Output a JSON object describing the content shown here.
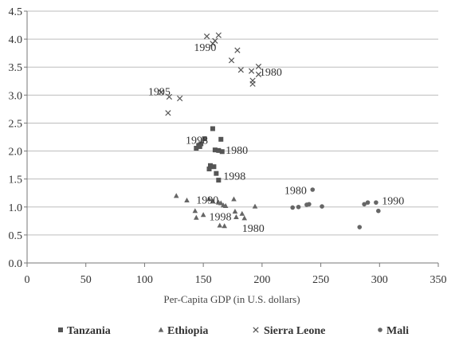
{
  "chart_data": {
    "type": "scatter",
    "title": "",
    "xlabel": "Per-Capita GDP (in U.S. dollars)",
    "ylabel": "",
    "xlim": [
      0,
      350
    ],
    "ylim": [
      0.0,
      4.5
    ],
    "xticks": [
      "0",
      "50",
      "100",
      "150",
      "200",
      "250",
      "300",
      "350"
    ],
    "yticks": [
      "0.0",
      "0.5",
      "1.0",
      "1.5",
      "2.0",
      "2.5",
      "3.0",
      "3.5",
      "4.0",
      "4.5"
    ],
    "grid": "horizontal",
    "legend_position": "bottom",
    "series": [
      {
        "name": "Tanzania",
        "marker": "square",
        "color": "#555555",
        "points": [
          [
            158,
            2.4
          ],
          [
            165,
            2.21
          ],
          [
            151,
            2.22
          ],
          [
            146,
            2.1
          ],
          [
            148,
            2.13
          ],
          [
            144,
            2.05
          ],
          [
            147,
            2.08
          ],
          [
            160,
            2.02
          ],
          [
            163,
            2.01
          ],
          [
            166,
            1.99
          ],
          [
            156,
            1.74
          ],
          [
            159,
            1.72
          ],
          [
            155,
            1.68
          ],
          [
            161,
            1.6
          ],
          [
            163,
            1.48
          ]
        ]
      },
      {
        "name": "Ethiopia",
        "marker": "triangle",
        "color": "#666666",
        "points": [
          [
            127,
            1.2
          ],
          [
            136,
            1.12
          ],
          [
            143,
            0.93
          ],
          [
            144,
            0.81
          ],
          [
            150,
            0.86
          ],
          [
            155,
            1.14
          ],
          [
            158,
            1.1
          ],
          [
            163,
            1.08
          ],
          [
            165,
            1.07
          ],
          [
            167,
            1.03
          ],
          [
            169,
            1.02
          ],
          [
            164,
            0.67
          ],
          [
            168,
            0.66
          ],
          [
            176,
            1.14
          ],
          [
            177,
            0.92
          ],
          [
            178,
            0.82
          ],
          [
            183,
            0.88
          ],
          [
            185,
            0.8
          ],
          [
            194,
            1.01
          ]
        ]
      },
      {
        "name": "Sierra Leone",
        "marker": "cross",
        "color": "#555555",
        "points": [
          [
            153,
            4.05
          ],
          [
            158,
            3.92
          ],
          [
            160,
            3.97
          ],
          [
            163,
            4.07
          ],
          [
            174,
            3.62
          ],
          [
            179,
            3.8
          ],
          [
            182,
            3.45
          ],
          [
            191,
            3.43
          ],
          [
            192,
            3.26
          ],
          [
            192,
            3.2
          ],
          [
            197,
            3.37
          ],
          [
            197,
            3.51
          ],
          [
            114,
            3.05
          ],
          [
            121,
            2.97
          ],
          [
            130,
            2.94
          ],
          [
            120,
            2.68
          ]
        ]
      },
      {
        "name": "Mali",
        "marker": "circle",
        "color": "#666666",
        "points": [
          [
            226,
            0.99
          ],
          [
            231,
            1.0
          ],
          [
            238,
            1.04
          ],
          [
            240,
            1.05
          ],
          [
            243,
            1.31
          ],
          [
            251,
            1.01
          ],
          [
            283,
            0.64
          ],
          [
            287,
            1.05
          ],
          [
            290,
            1.08
          ],
          [
            297,
            1.08
          ],
          [
            299,
            0.93
          ]
        ]
      }
    ],
    "annotations": [
      {
        "text": "1990",
        "x": 142,
        "y": 3.86
      },
      {
        "text": "1980",
        "x": 198,
        "y": 3.42
      },
      {
        "text": "1995",
        "x": 103,
        "y": 3.07
      },
      {
        "text": "1998",
        "x": 135,
        "y": 2.2
      },
      {
        "text": "1980",
        "x": 169,
        "y": 2.02
      },
      {
        "text": "1998",
        "x": 167,
        "y": 1.56
      },
      {
        "text": "1980",
        "x": 219,
        "y": 1.3
      },
      {
        "text": "1990",
        "x": 144,
        "y": 1.13
      },
      {
        "text": "1990",
        "x": 302,
        "y": 1.12
      },
      {
        "text": "1998",
        "x": 155,
        "y": 0.83
      },
      {
        "text": "1980",
        "x": 183,
        "y": 0.63
      }
    ]
  }
}
